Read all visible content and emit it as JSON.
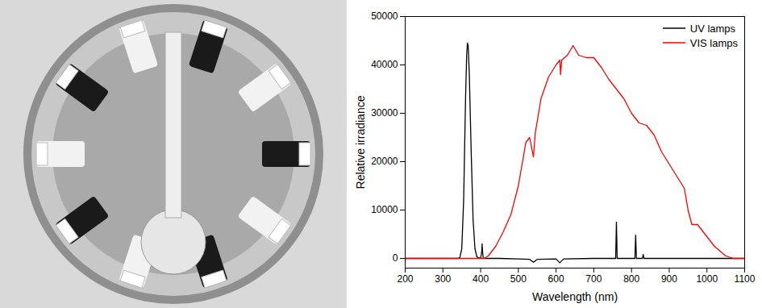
{
  "chart_data": {
    "type": "line",
    "x_label": "Wavelength (nm)",
    "y_label": "Relative irradiance",
    "xlim": [
      200,
      1100
    ],
    "xticks": [
      200,
      300,
      400,
      500,
      600,
      700,
      800,
      900,
      1000,
      1100
    ],
    "ylim": [
      -2000,
      50000
    ],
    "yticks": [
      0,
      10000,
      20000,
      30000,
      40000,
      50000
    ],
    "grid": false,
    "legend": "upper right",
    "series": [
      {
        "name": "UV lamps",
        "color": "#000000",
        "x": [
          200,
          250,
          300,
          340,
          345,
          350,
          355,
          360,
          363,
          365,
          367,
          370,
          375,
          380,
          385,
          390,
          400,
          403,
          404,
          405,
          407,
          450,
          500,
          530,
          540,
          550,
          600,
          610,
          620,
          700,
          758,
          760,
          762,
          809,
          811,
          813,
          829,
          831,
          833,
          900,
          1000,
          1100
        ],
        "values": [
          0,
          0,
          0,
          0,
          200,
          2000,
          12000,
          33000,
          42000,
          44500,
          44000,
          38000,
          22000,
          8000,
          2000,
          300,
          0,
          1500,
          3000,
          1500,
          0,
          0,
          -100,
          -200,
          -800,
          -200,
          -100,
          -900,
          -100,
          0,
          0,
          7500,
          0,
          0,
          4800,
          0,
          0,
          800,
          0,
          0,
          0,
          0
        ]
      },
      {
        "name": "VIS lamps",
        "color": "#ff0000",
        "x": [
          200,
          300,
          400,
          410,
          420,
          440,
          460,
          480,
          500,
          520,
          530,
          540,
          545,
          560,
          580,
          600,
          610,
          612,
          615,
          630,
          645,
          660,
          680,
          700,
          720,
          740,
          760,
          780,
          800,
          820,
          840,
          860,
          880,
          900,
          920,
          940,
          950,
          960,
          975,
          1000,
          1020,
          1050,
          1070,
          1100
        ],
        "values": [
          0,
          0,
          0,
          0,
          500,
          2500,
          5500,
          9000,
          15000,
          24000,
          25000,
          21000,
          26000,
          33000,
          37500,
          40000,
          41000,
          38000,
          41000,
          42000,
          44000,
          42000,
          41500,
          41500,
          39500,
          37000,
          35000,
          33000,
          30000,
          28000,
          27500,
          25500,
          22000,
          19500,
          17000,
          14500,
          10000,
          7000,
          7000,
          4500,
          2500,
          500,
          0,
          0
        ]
      }
    ]
  }
}
